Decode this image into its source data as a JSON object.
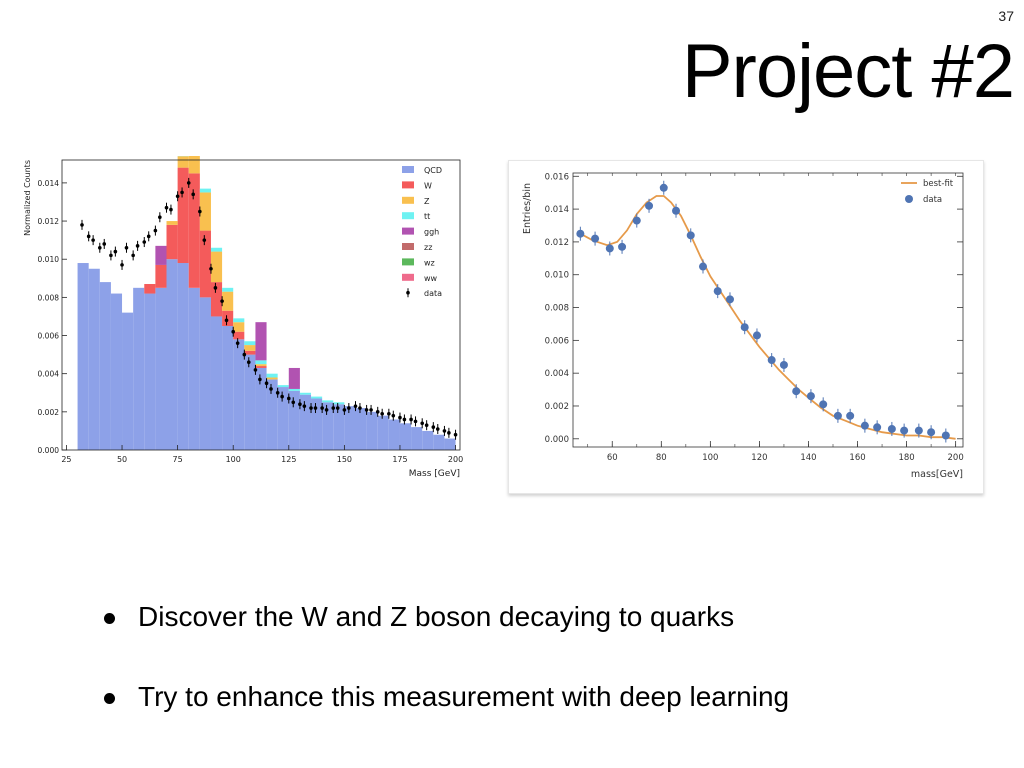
{
  "slide": {
    "number": "37",
    "title": "Project #2",
    "bullets": [
      {
        "text": "Discover the W and Z boson decaying to quarks"
      },
      {
        "text": "Try to enhance this measurement with deep learning"
      }
    ]
  },
  "chart_data": [
    {
      "type": "bar",
      "subtype": "stacked-histogram",
      "xlabel": "Mass [GeV]",
      "ylabel": "Normalized Counts",
      "xlim": [
        23,
        202
      ],
      "ylim": [
        0,
        0.0152
      ],
      "xticks": [
        "25",
        "50",
        "75",
        "100",
        "125",
        "150",
        "175",
        "200"
      ],
      "yticks": [
        "0.000",
        "0.002",
        "0.004",
        "0.006",
        "0.008",
        "0.010",
        "0.012",
        "0.014"
      ],
      "legend_position": "top-right",
      "bin_edges": [
        30,
        35,
        40,
        45,
        50,
        55,
        60,
        65,
        70,
        75,
        80,
        85,
        90,
        95,
        100,
        105,
        110,
        115,
        120,
        125,
        130,
        135,
        140,
        145,
        150,
        155,
        160,
        165,
        170,
        175,
        180,
        185,
        190,
        195,
        200
      ],
      "series": [
        {
          "name": "QCD",
          "color": "#8da1e8",
          "values": [
            0.0098,
            0.0095,
            0.0088,
            0.0082,
            0.0072,
            0.0085,
            0.0082,
            0.0085,
            0.01,
            0.0098,
            0.0085,
            0.008,
            0.007,
            0.0065,
            0.0058,
            0.005,
            0.0043,
            0.0037,
            0.0033,
            0.0031,
            0.0029,
            0.0027,
            0.0025,
            0.0024,
            0.0023,
            0.0022,
            0.002,
            0.0018,
            0.0016,
            0.0014,
            0.0012,
            0.001,
            0.0008,
            0.0006
          ]
        },
        {
          "name": "W",
          "color": "#f45b5b",
          "values": [
            0,
            0,
            0,
            0,
            0,
            0,
            0.0005,
            0.0012,
            0.0018,
            0.005,
            0.006,
            0.0035,
            0.0018,
            0.0008,
            0.0004,
            0.0002,
            0.0001,
            0,
            0,
            0,
            0,
            0,
            0,
            0,
            0,
            0,
            0,
            0,
            0,
            0,
            0,
            0,
            0,
            0
          ]
        },
        {
          "name": "Z",
          "color": "#f9c04f",
          "values": [
            0,
            0,
            0,
            0,
            0,
            0,
            0,
            0,
            0.0002,
            0.0006,
            0.0012,
            0.002,
            0.0016,
            0.001,
            0.0005,
            0.0003,
            0.0001,
            0.0001,
            0,
            0,
            0,
            0,
            0,
            0,
            0,
            0,
            0,
            0,
            0,
            0,
            0,
            0,
            0,
            0
          ]
        },
        {
          "name": "tt",
          "color": "#6ef2f2",
          "values": [
            0,
            0,
            0,
            0,
            0,
            0,
            0,
            0,
            0,
            0.0002,
            0.0002,
            0.0002,
            0.0002,
            0.0002,
            0.0002,
            0.0002,
            0.0002,
            0.0002,
            0.0001,
            0.0001,
            0.0001,
            0.0001,
            0.0001,
            0.0001,
            0,
            0,
            0,
            0,
            0,
            0,
            0,
            0,
            0,
            0
          ]
        },
        {
          "name": "ggh",
          "color": "#b153b1",
          "values": [
            0,
            0,
            0,
            0,
            0,
            0,
            0,
            0.001,
            0,
            0,
            0,
            0,
            0,
            0,
            0,
            0,
            0.002,
            0,
            0,
            0.0011,
            0,
            0,
            0,
            0,
            0,
            0,
            0,
            0,
            0,
            0,
            0,
            0,
            0,
            0
          ]
        },
        {
          "name": "zz",
          "color": "#c26b6b",
          "values": [
            0,
            0,
            0,
            0,
            0,
            0,
            0,
            0,
            0,
            0,
            0,
            0,
            0,
            0,
            0,
            0,
            0,
            0,
            0,
            0,
            0,
            0,
            0,
            0,
            0,
            0,
            0,
            0,
            0,
            0,
            0,
            0,
            0,
            0
          ]
        },
        {
          "name": "wz",
          "color": "#5cb85c",
          "values": [
            0,
            0,
            0,
            0,
            0,
            0,
            0,
            0,
            0,
            0,
            0,
            0,
            0,
            0,
            0,
            0,
            0,
            0,
            0,
            0,
            0,
            0,
            0,
            0,
            0,
            0,
            0,
            0,
            0,
            0,
            0,
            0,
            0,
            0
          ]
        },
        {
          "name": "ww",
          "color": "#ef6b8c",
          "values": [
            0,
            0,
            0,
            0,
            0,
            0,
            0,
            0,
            0,
            0,
            0,
            0,
            0,
            0,
            0,
            0,
            0,
            0,
            0,
            0,
            0,
            0,
            0,
            0,
            0,
            0,
            0,
            0,
            0,
            0,
            0,
            0,
            0,
            0
          ]
        }
      ],
      "data_points": {
        "name": "data",
        "color": "#000000",
        "x": [
          32,
          35,
          37,
          40,
          42,
          45,
          47,
          50,
          52,
          55,
          57,
          60,
          62,
          65,
          67,
          70,
          72,
          75,
          77,
          80,
          82,
          85,
          87,
          90,
          92,
          95,
          97,
          100,
          102,
          105,
          107,
          110,
          112,
          115,
          117,
          120,
          122,
          125,
          127,
          130,
          132,
          135,
          137,
          140,
          142,
          145,
          147,
          150,
          152,
          155,
          157,
          160,
          162,
          165,
          167,
          170,
          172,
          175,
          177,
          180,
          182,
          185,
          187,
          190,
          192,
          195,
          197,
          200
        ],
        "y": [
          0.0118,
          0.0112,
          0.011,
          0.0106,
          0.0108,
          0.0102,
          0.0104,
          0.0097,
          0.0106,
          0.0102,
          0.0107,
          0.0109,
          0.0112,
          0.0115,
          0.0122,
          0.0127,
          0.0126,
          0.0133,
          0.0135,
          0.014,
          0.0134,
          0.0125,
          0.011,
          0.0095,
          0.0085,
          0.0078,
          0.0068,
          0.0062,
          0.0056,
          0.005,
          0.0046,
          0.0042,
          0.0037,
          0.0035,
          0.0032,
          0.003,
          0.0028,
          0.0027,
          0.0025,
          0.0024,
          0.0023,
          0.0022,
          0.0022,
          0.0022,
          0.0021,
          0.0022,
          0.0022,
          0.0021,
          0.0022,
          0.0023,
          0.0022,
          0.0021,
          0.0021,
          0.002,
          0.0019,
          0.0019,
          0.0018,
          0.0017,
          0.0016,
          0.0016,
          0.0015,
          0.0014,
          0.0013,
          0.0012,
          0.0011,
          0.001,
          0.0009,
          0.0008
        ]
      }
    },
    {
      "type": "scatter",
      "xlabel": "mass[GeV]",
      "ylabel": "Entries/bin",
      "xlim": [
        44,
        203
      ],
      "ylim": [
        -0.0005,
        0.0162
      ],
      "xticks": [
        60,
        80,
        100,
        120,
        140,
        160,
        180,
        200
      ],
      "yticks": [
        "0.000",
        "0.002",
        "0.004",
        "0.006",
        "0.008",
        "0.010",
        "0.012",
        "0.014",
        "0.016"
      ],
      "legend_position": "top-right",
      "series": [
        {
          "name": "best-fit",
          "kind": "line",
          "color": "#e69a4a",
          "x": [
            47,
            52,
            58,
            62,
            66,
            70,
            74,
            78,
            81,
            84,
            88,
            92,
            96,
            100,
            104,
            108,
            112,
            116,
            120,
            124,
            128,
            132,
            136,
            140,
            145,
            150,
            155,
            160,
            165,
            170,
            175,
            180,
            185,
            190,
            195,
            200
          ],
          "y": [
            0.0125,
            0.0121,
            0.0118,
            0.012,
            0.0127,
            0.0137,
            0.0144,
            0.0148,
            0.0148,
            0.0144,
            0.0136,
            0.0124,
            0.0111,
            0.0099,
            0.009,
            0.0081,
            0.0072,
            0.0064,
            0.0056,
            0.0049,
            0.0042,
            0.0036,
            0.003,
            0.0025,
            0.0019,
            0.0014,
            0.0011,
            0.0008,
            0.0006,
            0.0004,
            0.0003,
            0.0002,
            0.0002,
            0.0001,
            0.0001,
            0.0
          ]
        },
        {
          "name": "data",
          "kind": "points",
          "color": "#4f74b3",
          "x": [
            47,
            53,
            59,
            64,
            70,
            75,
            81,
            86,
            92,
            97,
            103,
            108,
            114,
            119,
            125,
            130,
            135,
            141,
            146,
            152,
            157,
            163,
            168,
            174,
            179,
            185,
            190,
            196
          ],
          "y": [
            0.0125,
            0.0122,
            0.0116,
            0.0117,
            0.0133,
            0.0142,
            0.0153,
            0.0139,
            0.0124,
            0.0105,
            0.009,
            0.0085,
            0.0068,
            0.0063,
            0.0048,
            0.0045,
            0.0029,
            0.0026,
            0.0021,
            0.0014,
            0.0014,
            0.0008,
            0.0007,
            0.0006,
            0.0005,
            0.0005,
            0.0004,
            0.0002
          ]
        }
      ]
    }
  ]
}
